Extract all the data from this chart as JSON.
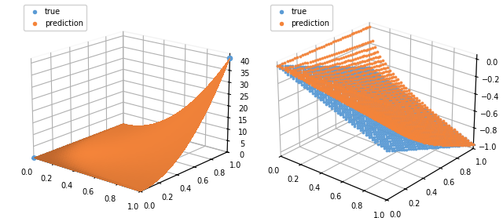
{
  "n_points": 40,
  "x_range": [
    0.0,
    1.0
  ],
  "y_range": [
    0.0,
    1.0
  ],
  "plot1_scale": 40.0,
  "plot1_power": 2.0,
  "plot1_zlim": [
    0,
    42
  ],
  "plot1_zticks": [
    0,
    5,
    10,
    15,
    20,
    25,
    30,
    35,
    40
  ],
  "plot2_zlim": [
    -1.05,
    0.05
  ],
  "plot2_zticks": [
    0.0,
    -0.2,
    -0.4,
    -0.6,
    -0.8,
    -1.0
  ],
  "true_color": "#5b9bd5",
  "pred_color": "#f4843a",
  "true_label": "true",
  "pred_label": "prediction",
  "scatter_size": 3,
  "elev1": 18,
  "azim1": -50,
  "elev2": 25,
  "azim2": -50,
  "figsize": [
    6.4,
    2.78
  ],
  "dpi": 100
}
